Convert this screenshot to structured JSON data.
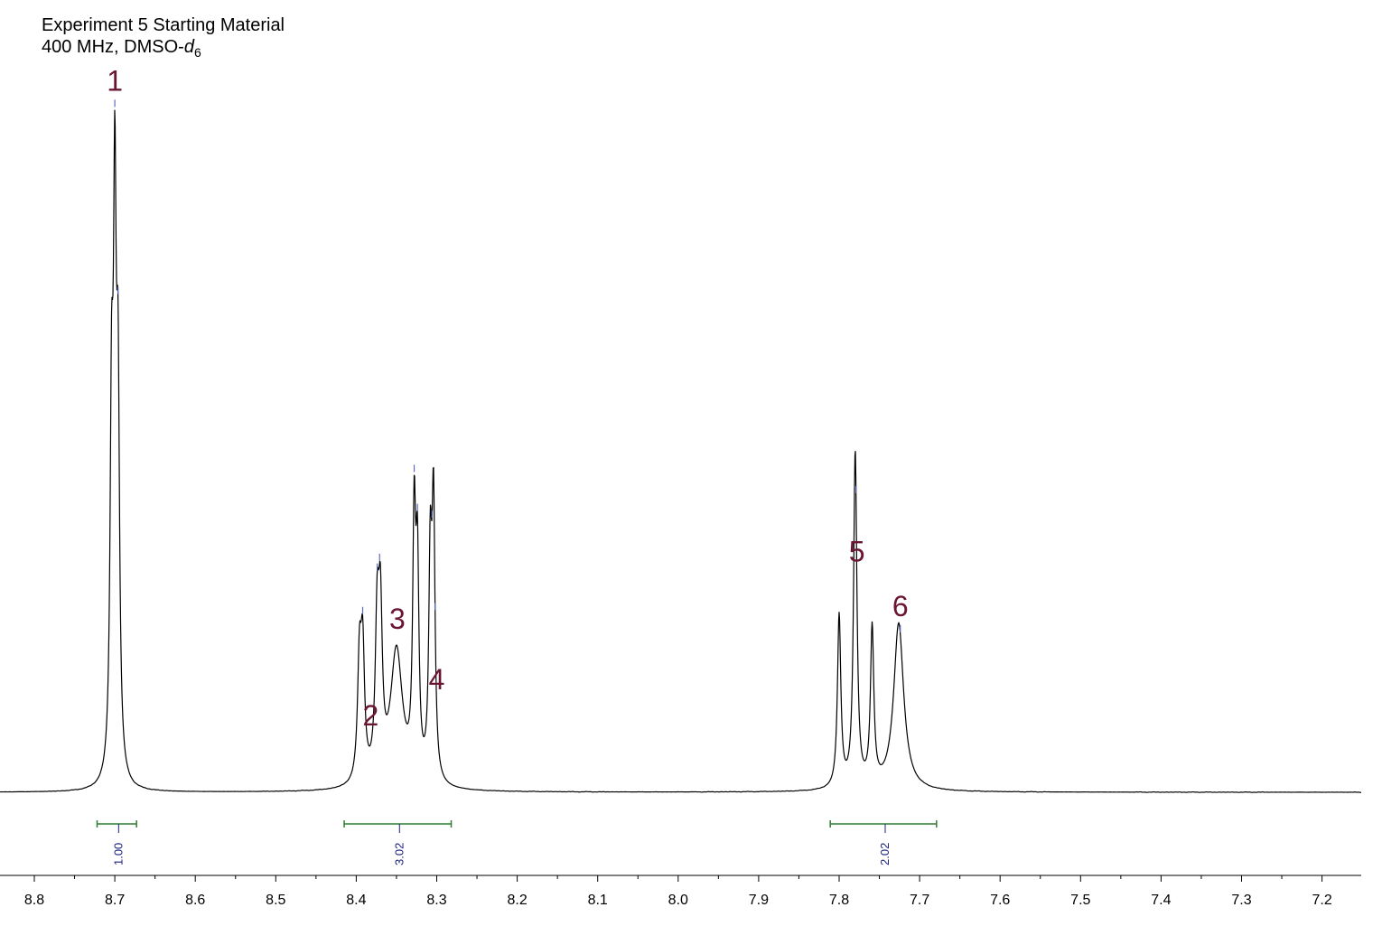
{
  "header": {
    "line1": "Experiment 5 Starting Material",
    "line2_prefix": "400 MHz, DMSO-",
    "line2_italic": "d",
    "line2_sub": "6"
  },
  "chart_data": {
    "type": "line",
    "title": "Experiment 5 Starting Material",
    "subtitle": "400 MHz, DMSO-d6",
    "xlabel": "",
    "ylabel": "",
    "x_axis": {
      "min": 7.18,
      "max": 8.83,
      "reversed": true,
      "ticks": [
        "8.8",
        "8.7",
        "8.6",
        "8.5",
        "8.4",
        "8.3",
        "8.2",
        "8.1",
        "8.0",
        "7.9",
        "7.8",
        "7.7",
        "7.6",
        "7.5",
        "7.4",
        "7.3",
        "7.2"
      ]
    },
    "grid": false,
    "legend": "none",
    "line_color": "#000000",
    "marker_color": "#5c6bc0",
    "label_color": "#6b1535",
    "integral_color": "#2e7d32",
    "integral_text_color": "#1a237e",
    "peaks": [
      {
        "x": 8.704,
        "h": 0.64,
        "w": 0.0022
      },
      {
        "x": 8.7,
        "h": 1.0,
        "w": 0.0022
      },
      {
        "x": 8.696,
        "h": 0.67,
        "w": 0.0022
      },
      {
        "x": 8.396,
        "h": 0.22,
        "w": 0.0028
      },
      {
        "x": 8.392,
        "h": 0.24,
        "w": 0.0028
      },
      {
        "x": 8.374,
        "h": 0.28,
        "w": 0.0028
      },
      {
        "x": 8.37,
        "h": 0.29,
        "w": 0.0028
      },
      {
        "x": 8.35,
        "h": 0.26,
        "w": 0.009
      },
      {
        "x": 8.328,
        "h": 0.47,
        "w": 0.0022
      },
      {
        "x": 8.324,
        "h": 0.38,
        "w": 0.0022
      },
      {
        "x": 8.308,
        "h": 0.4,
        "w": 0.0022
      },
      {
        "x": 8.304,
        "h": 0.51,
        "w": 0.0022
      },
      {
        "x": 7.8,
        "h": 0.33,
        "w": 0.0025
      },
      {
        "x": 7.78,
        "h": 0.64,
        "w": 0.0025
      },
      {
        "x": 7.759,
        "h": 0.3,
        "w": 0.0025
      },
      {
        "x": 7.726,
        "h": 0.32,
        "w": 0.0075
      }
    ],
    "peak_labels": [
      {
        "text": "1",
        "x": 8.7
      },
      {
        "text": "2",
        "x": 8.382
      },
      {
        "text": "3",
        "x": 8.349
      },
      {
        "text": "4",
        "x": 8.3
      },
      {
        "text": "5",
        "x": 7.778
      },
      {
        "text": "6",
        "x": 7.724
      }
    ],
    "peak_markers": [
      8.7,
      8.696,
      8.392,
      8.374,
      8.371,
      8.328,
      8.324,
      8.306,
      8.302,
      7.779,
      7.724
    ],
    "integrals": [
      {
        "from": 8.722,
        "to": 8.673,
        "value": "1.00"
      },
      {
        "from": 8.415,
        "to": 8.282,
        "value": "3.02"
      },
      {
        "from": 7.811,
        "to": 7.679,
        "value": "2.02"
      }
    ]
  }
}
